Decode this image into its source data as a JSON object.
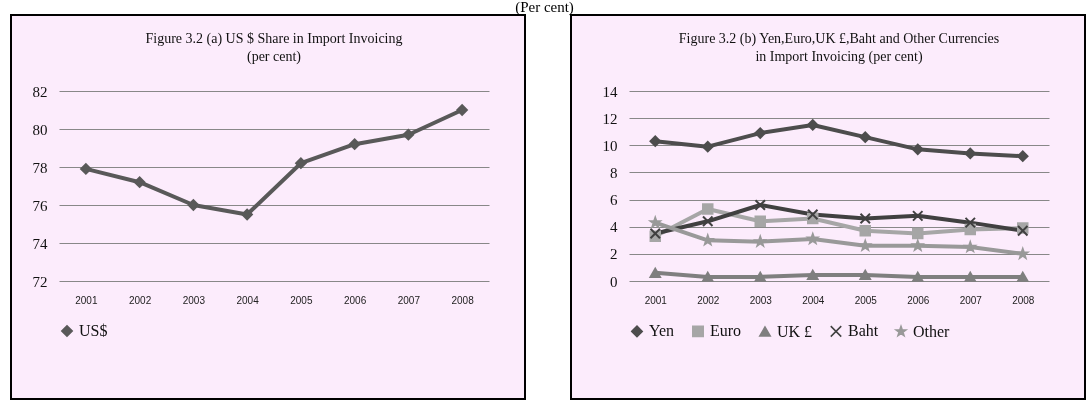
{
  "chart_data": [
    {
      "type": "line",
      "title": "Figure 3.2 (a) US $ Share in Import Invoicing\n(per cent)",
      "annotations": [
        "(Per cent)"
      ],
      "categories": [
        "2001",
        "2002",
        "2003",
        "2004",
        "2005",
        "2006",
        "2007",
        "2008"
      ],
      "series": [
        {
          "name": "US$",
          "color": "#595959",
          "marker": "diamond",
          "values": [
            77.9,
            77.2,
            76.0,
            75.5,
            78.2,
            79.2,
            79.7,
            81.0
          ]
        }
      ],
      "ylim": [
        72,
        82
      ],
      "yticks": [
        72,
        74,
        76,
        78,
        80,
        82
      ],
      "grid": "y",
      "legend": "bottom"
    },
    {
      "type": "line",
      "title": "Figure 3.2 (b) Yen,Euro,UK £,Baht and Other Currencies\nin Import Invoicing (per cent)",
      "categories": [
        "2001",
        "2002",
        "2003",
        "2004",
        "2005",
        "2006",
        "2007",
        "2008"
      ],
      "series": [
        {
          "name": "Yen",
          "color": "#4d4d4d",
          "marker": "diamond",
          "values": [
            10.3,
            9.9,
            10.9,
            11.5,
            10.6,
            9.7,
            9.4,
            9.2
          ]
        },
        {
          "name": "Euro",
          "color": "#a6a6a6",
          "marker": "square",
          "values": [
            3.3,
            5.3,
            4.4,
            4.6,
            3.7,
            3.5,
            3.8,
            3.9
          ]
        },
        {
          "name": "UK £",
          "color": "#7f7f7f",
          "marker": "triangle",
          "values": [
            0.6,
            0.3,
            0.3,
            0.45,
            0.45,
            0.3,
            0.3,
            0.3
          ]
        },
        {
          "name": "Baht",
          "color": "#404040",
          "marker": "cross",
          "values": [
            3.5,
            4.4,
            5.6,
            4.9,
            4.6,
            4.8,
            4.3,
            3.7
          ]
        },
        {
          "name": "Other",
          "color": "#999999",
          "marker": "star",
          "values": [
            4.3,
            3.0,
            2.9,
            3.1,
            2.6,
            2.6,
            2.5,
            2.0
          ]
        }
      ],
      "ylim": [
        0,
        14
      ],
      "yticks": [
        0,
        2,
        4,
        6,
        8,
        10,
        12,
        14
      ],
      "grid": "y",
      "legend": "bottom"
    }
  ]
}
